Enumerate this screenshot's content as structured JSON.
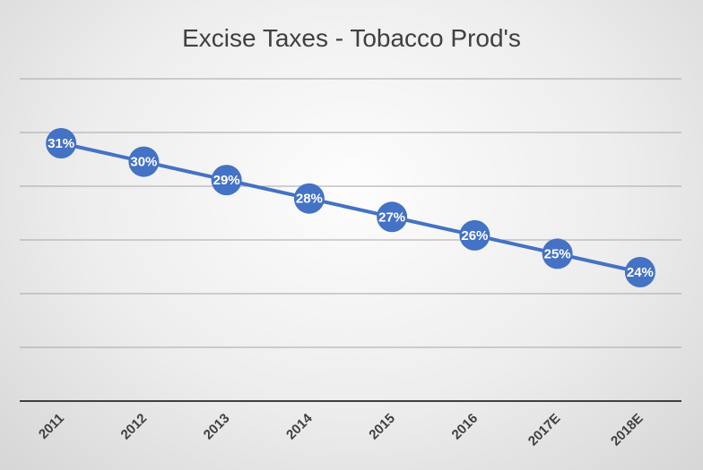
{
  "chart_data": {
    "type": "line",
    "title": "Excise Taxes - Tobacco Prod's",
    "categories": [
      "2011",
      "2012",
      "2013",
      "2014",
      "2015",
      "2016",
      "2017E",
      "2018E"
    ],
    "values": [
      31,
      30,
      29,
      28,
      27,
      26,
      25,
      24
    ],
    "data_labels": [
      "31%",
      "30%",
      "29%",
      "28%",
      "27%",
      "26%",
      "25%",
      "24%"
    ],
    "xlabel": "",
    "ylabel": "",
    "ylim": [
      17,
      34.5
    ],
    "y_tick_labels_shown": false,
    "grid": true,
    "legend": "none",
    "colors": {
      "series": "#4472c4",
      "text": "#404040",
      "grid": "#a6a6a6"
    }
  }
}
